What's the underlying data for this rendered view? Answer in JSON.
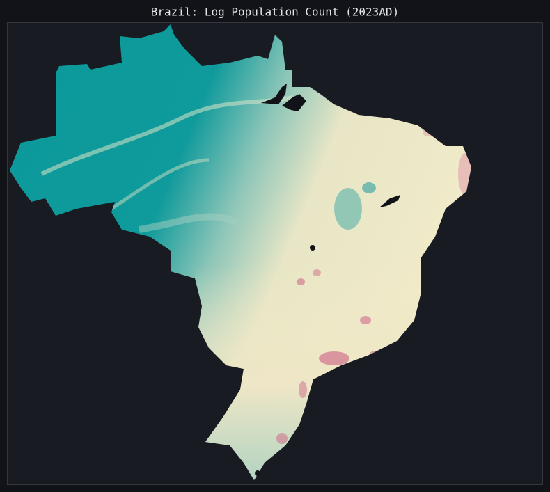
{
  "title": "Brazil: Log Population Count (2023AD)"
}
